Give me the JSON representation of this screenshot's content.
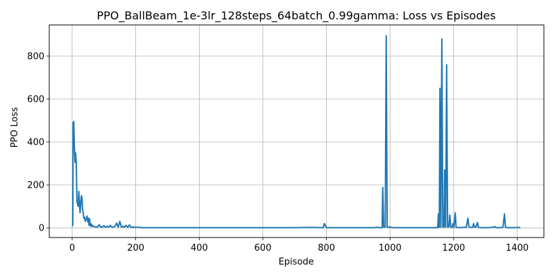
{
  "chart_data": {
    "type": "line",
    "title": "PPO_BallBeam_1e-3lr_128steps_64batch_0.99gamma: Loss vs Episodes",
    "xlabel": "Episode",
    "ylabel": "PPO Loss",
    "xlim": [
      -72,
      1484
    ],
    "ylim": [
      -45,
      945
    ],
    "x_ticks": [
      0,
      200,
      400,
      600,
      800,
      1000,
      1200,
      1400
    ],
    "y_ticks": [
      0,
      200,
      400,
      600,
      800
    ],
    "grid": true,
    "line_color": "#1f77b4",
    "series": [
      {
        "points": [
          [
            0,
            8
          ],
          [
            2,
            12
          ],
          [
            3,
            490
          ],
          [
            5,
            495
          ],
          [
            7,
            380
          ],
          [
            9,
            305
          ],
          [
            11,
            350
          ],
          [
            13,
            300
          ],
          [
            15,
            125
          ],
          [
            17,
            110
          ],
          [
            19,
            100
          ],
          [
            21,
            170
          ],
          [
            23,
            110
          ],
          [
            25,
            70
          ],
          [
            27,
            115
          ],
          [
            29,
            150
          ],
          [
            31,
            140
          ],
          [
            33,
            80
          ],
          [
            35,
            70
          ],
          [
            37,
            45
          ],
          [
            39,
            50
          ],
          [
            41,
            30
          ],
          [
            43,
            38
          ],
          [
            45,
            42
          ],
          [
            47,
            55
          ],
          [
            49,
            28
          ],
          [
            51,
            45
          ],
          [
            53,
            12
          ],
          [
            55,
            42
          ],
          [
            57,
            8
          ],
          [
            59,
            15
          ],
          [
            61,
            18
          ],
          [
            63,
            6
          ],
          [
            65,
            10
          ],
          [
            70,
            5
          ],
          [
            75,
            5
          ],
          [
            80,
            4
          ],
          [
            85,
            15
          ],
          [
            90,
            3
          ],
          [
            95,
            4
          ],
          [
            100,
            10
          ],
          [
            105,
            3
          ],
          [
            110,
            8
          ],
          [
            115,
            3
          ],
          [
            120,
            12
          ],
          [
            125,
            3
          ],
          [
            130,
            4
          ],
          [
            135,
            8
          ],
          [
            140,
            22
          ],
          [
            145,
            3
          ],
          [
            150,
            30
          ],
          [
            155,
            3
          ],
          [
            160,
            8
          ],
          [
            165,
            3
          ],
          [
            170,
            12
          ],
          [
            175,
            2
          ],
          [
            180,
            14
          ],
          [
            185,
            2
          ],
          [
            190,
            4
          ],
          [
            200,
            2
          ],
          [
            210,
            3
          ],
          [
            220,
            1
          ],
          [
            250,
            1
          ],
          [
            300,
            1
          ],
          [
            400,
            1
          ],
          [
            500,
            1
          ],
          [
            600,
            1
          ],
          [
            700,
            1
          ],
          [
            750,
            2
          ],
          [
            790,
            1
          ],
          [
            793,
            20
          ],
          [
            796,
            14
          ],
          [
            799,
            1
          ],
          [
            850,
            1
          ],
          [
            900,
            1
          ],
          [
            950,
            1
          ],
          [
            960,
            3
          ],
          [
            965,
            1
          ],
          [
            975,
            1
          ],
          [
            977,
            188
          ],
          [
            980,
            3
          ],
          [
            985,
            5
          ],
          [
            988,
            895
          ],
          [
            991,
            3
          ],
          [
            995,
            2
          ],
          [
            1000,
            5
          ],
          [
            1005,
            2
          ],
          [
            1010,
            1
          ],
          [
            1050,
            1
          ],
          [
            1100,
            1
          ],
          [
            1150,
            1
          ],
          [
            1152,
            65
          ],
          [
            1155,
            2
          ],
          [
            1157,
            650
          ],
          [
            1160,
            3
          ],
          [
            1163,
            880
          ],
          [
            1166,
            3
          ],
          [
            1170,
            5
          ],
          [
            1172,
            270
          ],
          [
            1175,
            3
          ],
          [
            1178,
            760
          ],
          [
            1181,
            4
          ],
          [
            1185,
            5
          ],
          [
            1188,
            60
          ],
          [
            1191,
            2
          ],
          [
            1195,
            3
          ],
          [
            1198,
            20
          ],
          [
            1201,
            2
          ],
          [
            1205,
            70
          ],
          [
            1208,
            2
          ],
          [
            1215,
            1
          ],
          [
            1230,
            2
          ],
          [
            1240,
            3
          ],
          [
            1245,
            45
          ],
          [
            1248,
            5
          ],
          [
            1252,
            2
          ],
          [
            1260,
            3
          ],
          [
            1263,
            20
          ],
          [
            1266,
            4
          ],
          [
            1270,
            3
          ],
          [
            1275,
            25
          ],
          [
            1278,
            2
          ],
          [
            1290,
            1
          ],
          [
            1310,
            1
          ],
          [
            1320,
            2
          ],
          [
            1330,
            6
          ],
          [
            1333,
            1
          ],
          [
            1345,
            1
          ],
          [
            1355,
            2
          ],
          [
            1360,
            65
          ],
          [
            1363,
            2
          ],
          [
            1375,
            1
          ],
          [
            1390,
            1
          ],
          [
            1400,
            2
          ],
          [
            1410,
            1
          ]
        ]
      }
    ]
  }
}
